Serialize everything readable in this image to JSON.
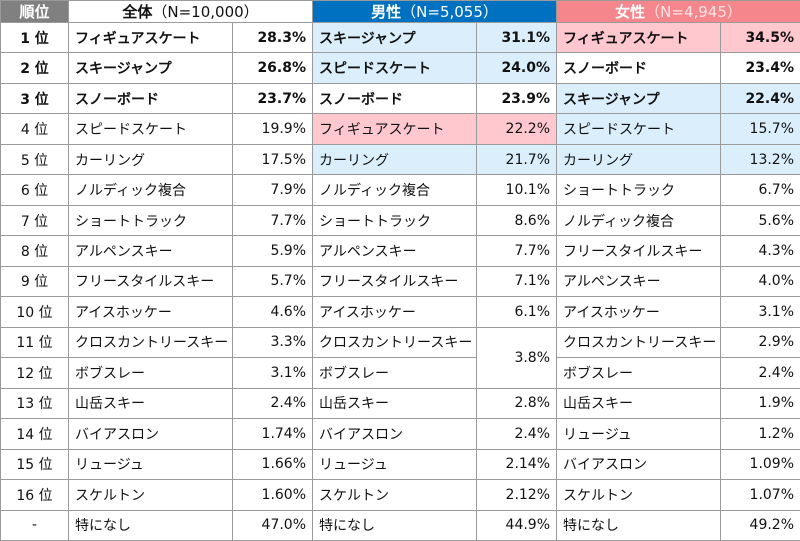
{
  "header": {
    "rank": "順位",
    "groups": [
      {
        "label": "全体",
        "n": "（N=10,000）",
        "color": "#ffffff"
      },
      {
        "label": "男性",
        "n": "（N=5,055）",
        "color": "#0070c0"
      },
      {
        "label": "女性",
        "n": "（N=4,945）",
        "color": "#f4868c"
      }
    ]
  },
  "rows": [
    {
      "rank": "1 位",
      "cells": [
        {
          "name": "フィギュアスケート",
          "pct": "28.3%"
        },
        {
          "name": "スキージャンプ",
          "pct": "31.1%",
          "color": "#dbeefc"
        },
        {
          "name": "フィギュアスケート",
          "pct": "34.5%",
          "color": "#ffc7ce"
        }
      ]
    },
    {
      "rank": "2 位",
      "cells": [
        {
          "name": "スキージャンプ",
          "pct": "26.8%"
        },
        {
          "name": "スピードスケート",
          "pct": "24.0%",
          "color": "#dbeefc"
        },
        {
          "name": "スノーボード",
          "pct": "23.4%"
        }
      ]
    },
    {
      "rank": "3 位",
      "cells": [
        {
          "name": "スノーボード",
          "pct": "23.7%"
        },
        {
          "name": "スノーボード",
          "pct": "23.9%"
        },
        {
          "name": "スキージャンプ",
          "pct": "22.4%",
          "color": "#dbeefc"
        }
      ]
    },
    {
      "rank": "4 位",
      "cells": [
        {
          "name": "スピードスケート",
          "pct": "19.9%"
        },
        {
          "name": "フィギュアスケート",
          "pct": "22.2%",
          "color": "#ffc7ce"
        },
        {
          "name": "スピードスケート",
          "pct": "15.7%",
          "color": "#dbeefc"
        }
      ]
    },
    {
      "rank": "5 位",
      "cells": [
        {
          "name": "カーリング",
          "pct": "17.5%"
        },
        {
          "name": "カーリング",
          "pct": "21.7%",
          "color": "#dbeefc"
        },
        {
          "name": "カーリング",
          "pct": "13.2%",
          "color": "#dbeefc"
        }
      ]
    },
    {
      "rank": "6 位",
      "cells": [
        {
          "name": "ノルディック複合",
          "pct": "7.9%"
        },
        {
          "name": "ノルディック複合",
          "pct": "10.1%"
        },
        {
          "name": "ショートトラック",
          "pct": "6.7%"
        }
      ]
    },
    {
      "rank": "7 位",
      "cells": [
        {
          "name": "ショートトラック",
          "pct": "7.7%"
        },
        {
          "name": "ショートトラック",
          "pct": "8.6%"
        },
        {
          "name": "ノルディック複合",
          "pct": "5.6%"
        }
      ]
    },
    {
      "rank": "8 位",
      "cells": [
        {
          "name": "アルペンスキー",
          "pct": "5.9%"
        },
        {
          "name": "アルペンスキー",
          "pct": "7.7%"
        },
        {
          "name": "フリースタイルスキー",
          "pct": "4.3%"
        }
      ]
    },
    {
      "rank": "9 位",
      "cells": [
        {
          "name": "フリースタイルスキー",
          "pct": "5.7%"
        },
        {
          "name": "フリースタイルスキー",
          "pct": "7.1%"
        },
        {
          "name": "アルペンスキー",
          "pct": "4.0%"
        }
      ]
    },
    {
      "rank": "10 位",
      "cells": [
        {
          "name": "アイスホッケー",
          "pct": "4.6%"
        },
        {
          "name": "アイスホッケー",
          "pct": "6.1%"
        },
        {
          "name": "アイスホッケー",
          "pct": "3.1%"
        }
      ]
    },
    {
      "rank": "11 位",
      "cells": [
        {
          "name": "クロスカントリースキー",
          "pct": "3.3%"
        },
        {
          "name": "クロスカントリースキー",
          "pct": "3.8%"
        },
        {
          "name": "クロスカントリースキー",
          "pct": "2.9%"
        }
      ]
    },
    {
      "rank": "12 位",
      "cells": [
        {
          "name": "ボブスレー",
          "pct": "3.1%"
        },
        {
          "name": "ボブスレー",
          "pct": null
        },
        {
          "name": "ボブスレー",
          "pct": "2.4%"
        }
      ]
    },
    {
      "rank": "13 位",
      "cells": [
        {
          "name": "山岳スキー",
          "pct": "2.4%"
        },
        {
          "name": "山岳スキー",
          "pct": "2.8%"
        },
        {
          "name": "山岳スキー",
          "pct": "1.9%"
        }
      ]
    },
    {
      "rank": "14 位",
      "cells": [
        {
          "name": "バイアスロン",
          "pct": "1.74%"
        },
        {
          "name": "バイアスロン",
          "pct": "2.4%"
        },
        {
          "name": "リュージュ",
          "pct": "1.2%"
        }
      ]
    },
    {
      "rank": "15 位",
      "cells": [
        {
          "name": "リュージュ",
          "pct": "1.66%"
        },
        {
          "name": "リュージュ",
          "pct": "2.14%"
        },
        {
          "name": "バイアスロン",
          "pct": "1.09%"
        }
      ]
    },
    {
      "rank": "16 位",
      "cells": [
        {
          "name": "スケルトン",
          "pct": "1.60%"
        },
        {
          "name": "スケルトン",
          "pct": "2.12%"
        },
        {
          "name": "スケルトン",
          "pct": "1.07%"
        }
      ]
    },
    {
      "rank": "-",
      "cells": [
        {
          "name": "特になし",
          "pct": "47.0%"
        },
        {
          "name": "特になし",
          "pct": "44.9%"
        },
        {
          "name": "特になし",
          "pct": "49.2%"
        }
      ]
    }
  ]
}
